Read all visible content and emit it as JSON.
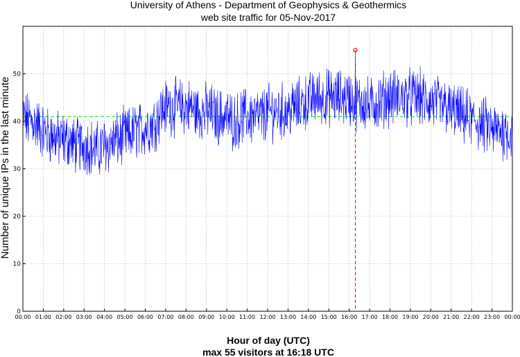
{
  "chart_data": {
    "type": "line",
    "title": "University of Athens - Department of Geophysics & Geothermics",
    "subtitle": "web site traffic for 05-Nov-2017",
    "xlabel": "Hour of day (UTC)",
    "footer": "max 55 visitors at 16:18 UTC",
    "ylabel": "Number of unique IPs in the last minute",
    "ylim": [
      0,
      60
    ],
    "y_ticks": [
      "0",
      "10",
      "20",
      "30",
      "40",
      "50"
    ],
    "xlim_hours": [
      0,
      24
    ],
    "x_ticks": [
      "00:00",
      "01:00",
      "02:00",
      "03:00",
      "04:00",
      "05:00",
      "06:00",
      "07:00",
      "08:00",
      "09:00",
      "10:00",
      "11:00",
      "12:00",
      "13:00",
      "14:00",
      "15:00",
      "16:00",
      "17:00",
      "18:00",
      "19:00",
      "20:00",
      "21:00",
      "22:00",
      "23:00",
      "00:00"
    ],
    "grid": true,
    "series": [
      {
        "color": "#0000ff",
        "hours": [
          0.0,
          0.25,
          0.5,
          0.75,
          1.0,
          1.25,
          1.5,
          1.75,
          2.0,
          2.25,
          2.5,
          2.75,
          3.0,
          3.25,
          3.5,
          3.75,
          4.0,
          4.25,
          4.5,
          4.75,
          5.0,
          5.25,
          5.5,
          5.75,
          6.0,
          6.25,
          6.5,
          6.75,
          7.0,
          7.25,
          7.5,
          7.75,
          8.0,
          8.25,
          8.5,
          8.75,
          9.0,
          9.25,
          9.5,
          9.75,
          10.0,
          10.25,
          10.5,
          10.75,
          11.0,
          11.25,
          11.5,
          11.75,
          12.0,
          12.25,
          12.5,
          12.75,
          13.0,
          13.25,
          13.5,
          13.75,
          14.0,
          14.25,
          14.5,
          14.75,
          15.0,
          15.25,
          15.5,
          15.75,
          16.0,
          16.25,
          16.5,
          16.75,
          17.0,
          17.25,
          17.5,
          17.75,
          18.0,
          18.25,
          18.5,
          18.75,
          19.0,
          19.25,
          19.5,
          19.75,
          20.0,
          20.25,
          20.5,
          20.75,
          21.0,
          21.25,
          21.5,
          21.75,
          22.0,
          22.25,
          22.5,
          22.75,
          23.0,
          23.25,
          23.5,
          23.75,
          24.0
        ],
        "mean": [
          41,
          40,
          40,
          39,
          38,
          37,
          37,
          36,
          36,
          36,
          35,
          35,
          35,
          35,
          34,
          34,
          35,
          35,
          36,
          36,
          37,
          37,
          38,
          38,
          39,
          39,
          40,
          42,
          43,
          43,
          43,
          43,
          43,
          43,
          42,
          42,
          42,
          42,
          41,
          41,
          41,
          40,
          40,
          41,
          41,
          41,
          41,
          41,
          42,
          42,
          42,
          42,
          42,
          43,
          43,
          44,
          44,
          45,
          45,
          45,
          45,
          45,
          45,
          45,
          45,
          44,
          44,
          44,
          43,
          44,
          44,
          45,
          45,
          45,
          45,
          45,
          45,
          45,
          45,
          44,
          44,
          44,
          43,
          43,
          42,
          42,
          41,
          41,
          40,
          40,
          39,
          39,
          38,
          38,
          38,
          38,
          37
        ]
      }
    ],
    "mean_line": {
      "value": 41,
      "color": "#00dd00"
    },
    "peak": {
      "hour": 16.3,
      "value": 55,
      "color": "#ff0000"
    }
  }
}
